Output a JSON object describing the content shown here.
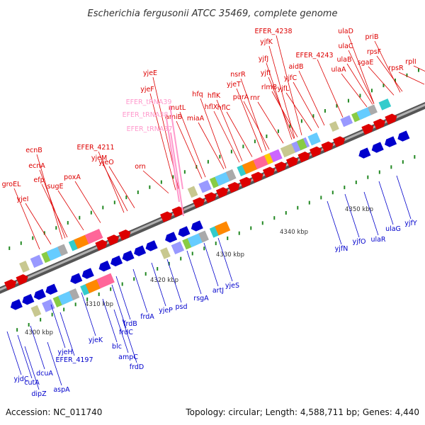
{
  "title": "Escherichia fergusonii ATCC 35469, complete genome",
  "footer": {
    "accession": "Accession: NC_011740",
    "summary": "Topology: circular; Length: 4,588,711 bp; Genes: 4,440"
  },
  "colors": {
    "forward": "#dd0000",
    "reverse": "#0000cc",
    "trna": "#ff99cc",
    "backbone": "#808080",
    "ticks": "#228822"
  },
  "scale_labels": [
    "4300 kbp",
    "4310 kbp",
    "4320 kbp",
    "4330 kbp",
    "4340 kbp",
    "4350 kbp"
  ],
  "forward_genes": [
    "groEL",
    "yjeI",
    "ecnB",
    "ecnA",
    "efp",
    "sugE",
    "poxA",
    "EFER_4211",
    "yjeM",
    "yjeO",
    "orn",
    "yjeE",
    "yjeF",
    "mutL",
    "amiB",
    "hfq",
    "miaA",
    "hflX",
    "hflK",
    "hflC",
    "yjeT",
    "purA",
    "nsrR",
    "rnr",
    "rlmB",
    "yjfI",
    "yjfJ",
    "yjfK",
    "EFER_4238",
    "yjfL",
    "yjfC",
    "aidB",
    "EFER_4243",
    "ulaA",
    "ulaB",
    "ulaC",
    "ulaD",
    "sgaE",
    "rpsF",
    "priB",
    "rpsR",
    "rplI"
  ],
  "trna_genes": [
    "EFER_tRNA39",
    "EFER_tRNA38",
    "EFER_tRNA37"
  ],
  "reverse_genes": [
    "yjdC",
    "dipZ",
    "cutA",
    "dcuA",
    "aspA",
    "yjeH",
    "EFER_4197",
    "yjeK",
    "blc",
    "ampC",
    "frdC",
    "frdB",
    "frdD",
    "frdA",
    "yjeP",
    "psd",
    "rsgA",
    "artJ",
    "yjeS",
    "yjfN",
    "yjfO",
    "ulaR",
    "ulaG",
    "yjfY"
  ]
}
